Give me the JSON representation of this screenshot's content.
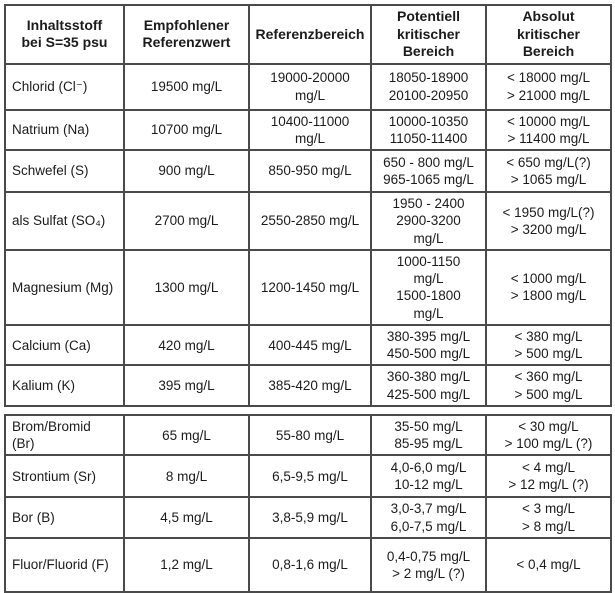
{
  "table": {
    "title": "Inhaltsstoff bei S=35 psu Referenztabelle",
    "headers": [
      "Inhaltsstoff\nbei S=35 psu",
      "Empfohlener\nReferenzwert",
      "Referenzbereich",
      "Potentiell\nkritischer\nBereich",
      "Absolut\nkritischer\nBereich"
    ],
    "rows": [
      {
        "cells": [
          "Chlorid (Cl⁻)",
          "19500 mg/L",
          "19000-20000\nmg/L",
          "18050-18900\n20100-20950",
          "< 18000 mg/L\n> 21000 mg/L"
        ]
      },
      {
        "cells": [
          "Natrium (Na)",
          "10700 mg/L",
          "10400-11000\nmg/L",
          "10000-10350\n11050-11400",
          "< 10000 mg/L\n> 11400 mg/L"
        ]
      },
      {
        "cells": [
          "Schwefel (S)",
          "900 mg/L",
          "850-950 mg/L",
          "650 - 800 mg/L\n965-1065 mg/L",
          "< 650 mg/L(?)\n> 1065 mg/L"
        ]
      },
      {
        "cells": [
          "als Sulfat (SO₄)",
          "2700 mg/L",
          "2550-2850 mg/L",
          "1950 - 2400\n2900-3200\nmg/L",
          "< 1950 mg/L(?)\n> 3200 mg/L"
        ]
      },
      {
        "cells": [
          "Magnesium (Mg)",
          "1300 mg/L",
          "1200-1450 mg/L",
          "1000-1150\nmg/L\n1500-1800\nmg/L",
          "< 1000 mg/L\n> 1800 mg/L"
        ]
      },
      {
        "cells": [
          "Calcium (Ca)",
          "420 mg/L",
          "400-445 mg/L",
          "380-395 mg/L\n450-500 mg/L",
          "< 380 mg/L\n> 500 mg/L"
        ]
      },
      {
        "cells": [
          "Kalium (K)",
          "395 mg/L",
          "385-420 mg/L",
          "360-380 mg/L\n425-500 mg/L",
          "< 360 mg/L\n> 500 mg/L"
        ]
      },
      {
        "cells": [
          "Brom/Bromid\n(Br)",
          "65 mg/L",
          "55-80 mg/L",
          "35-50 mg/L\n85-95 mg/L",
          "< 30 mg/L\n> 100 mg/L (?)"
        ]
      },
      {
        "cells": [
          "Strontium (Sr)",
          "8 mg/L",
          "6,5-9,5 mg/L",
          "4,0-6,0 mg/L\n10-12 mg/L",
          "< 4 mg/L\n> 12 mg/L (?)"
        ]
      },
      {
        "cells": [
          "Bor (B)",
          "4,5 mg/L",
          "3,8-5,9 mg/L",
          "3,0-3,7 mg/L\n6,0-7,5 mg/L",
          "< 3 mg/L\n> 8 mg/L"
        ]
      },
      {
        "cells": [
          "Fluor/Fluorid (F)",
          "1,2 mg/L",
          "0,8-1,6 mg/L",
          "0,4-0,75 mg/L\n> 2 mg/L (?)",
          "< 0,4 mg/L"
        ]
      }
    ]
  }
}
